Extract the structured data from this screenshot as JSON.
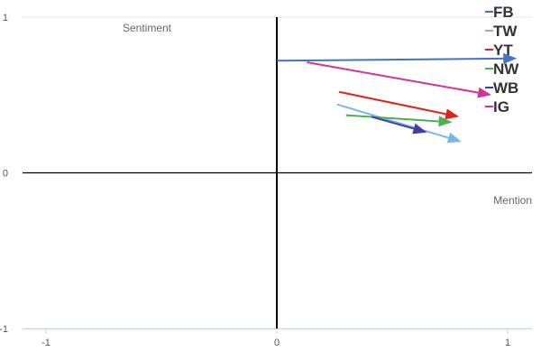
{
  "chart_data": {
    "type": "vector",
    "xlabel": "Mention",
    "ylabel": "Sentiment",
    "xlim": [
      -1.05,
      1.1
    ],
    "ylim": [
      -1,
      1
    ],
    "x_ticks": [
      "-1",
      "0",
      "1"
    ],
    "y_ticks": [
      "1",
      "0",
      "-1"
    ],
    "grid": "horizontal",
    "legend_position": "top-right",
    "series": [
      {
        "name": "FB",
        "color": "#4472c4",
        "start": [
          0.0,
          0.72
        ],
        "end": [
          1.04,
          0.735
        ]
      },
      {
        "name": "TW",
        "color": "#7cb5ec",
        "start": [
          0.26,
          0.44
        ],
        "end": [
          0.8,
          0.2
        ]
      },
      {
        "name": "YT",
        "color": "#e0231c",
        "start": [
          0.27,
          0.52
        ],
        "end": [
          0.79,
          0.36
        ]
      },
      {
        "name": "NW",
        "color": "#4caf50",
        "start": [
          0.3,
          0.37
        ],
        "end": [
          0.76,
          0.325
        ]
      },
      {
        "name": "WB",
        "color": "#433f9c",
        "start": [
          0.41,
          0.36
        ],
        "end": [
          0.65,
          0.26
        ]
      },
      {
        "name": "IG",
        "color": "#d6309b",
        "start": [
          0.13,
          0.71
        ],
        "end": [
          0.93,
          0.5
        ]
      }
    ]
  }
}
